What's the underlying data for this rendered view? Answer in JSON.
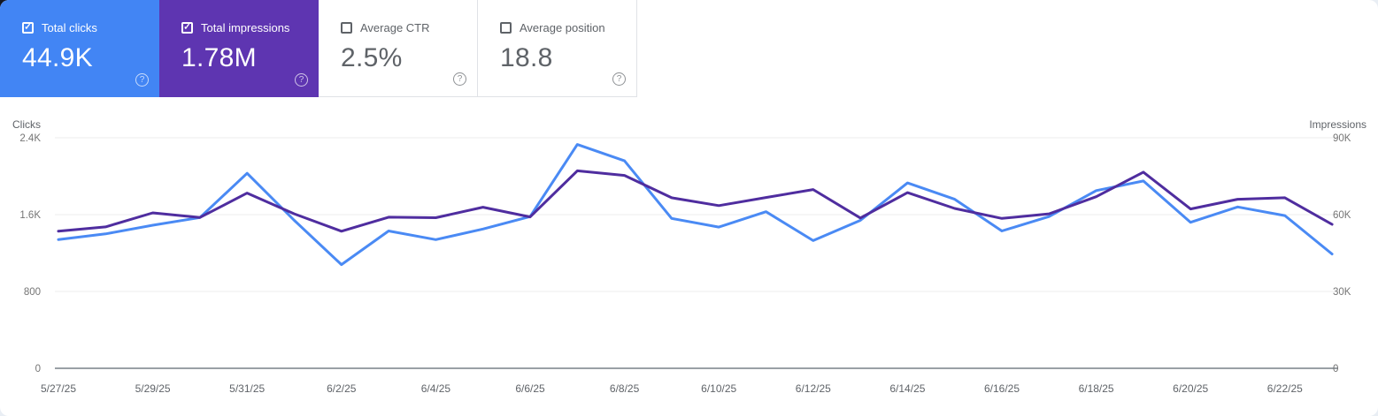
{
  "icons": {
    "check": "✓",
    "help": "?"
  },
  "cards": [
    {
      "label": "Total clicks",
      "value": "44.9K",
      "checked": true,
      "bg": "#4285f4",
      "text": "#ffffff"
    },
    {
      "label": "Total impressions",
      "value": "1.78M",
      "checked": true,
      "bg": "#5e35b1",
      "text": "#ffffff"
    },
    {
      "label": "Average CTR",
      "value": "2.5%",
      "checked": false,
      "bg": "#ffffff",
      "text": "#5f6368"
    },
    {
      "label": "Average position",
      "value": "18.8",
      "checked": false,
      "bg": "#ffffff",
      "text": "#5f6368"
    }
  ],
  "chart_data": {
    "type": "line",
    "x": [
      "5/27/25",
      "5/28/25",
      "5/29/25",
      "5/30/25",
      "5/31/25",
      "6/1/25",
      "6/2/25",
      "6/3/25",
      "6/4/25",
      "6/5/25",
      "6/6/25",
      "6/7/25",
      "6/8/25",
      "6/9/25",
      "6/10/25",
      "6/11/25",
      "6/12/25",
      "6/13/25",
      "6/14/25",
      "6/15/25",
      "6/16/25",
      "6/17/25",
      "6/18/25",
      "6/19/25",
      "6/20/25",
      "6/21/25",
      "6/22/25",
      "6/23/25"
    ],
    "x_tick_labels": [
      "5/27/25",
      "5/29/25",
      "5/31/25",
      "6/2/25",
      "6/4/25",
      "6/6/25",
      "6/8/25",
      "6/10/25",
      "6/12/25",
      "6/14/25",
      "6/16/25",
      "6/18/25",
      "6/20/25",
      "6/22/25"
    ],
    "series": [
      {
        "name": "Clicks",
        "axis": "left",
        "color": "#4a8af4",
        "values": [
          1340,
          1400,
          1490,
          1570,
          2030,
          1540,
          1080,
          1430,
          1340,
          1450,
          1580,
          2330,
          2160,
          1560,
          1470,
          1630,
          1330,
          1540,
          1930,
          1760,
          1430,
          1580,
          1850,
          1950,
          1520,
          1680,
          1590,
          1190
        ]
      },
      {
        "name": "Impressions",
        "axis": "right",
        "color": "#4f2d9f",
        "values": [
          53500,
          55200,
          60700,
          58900,
          68400,
          60300,
          53500,
          59000,
          58800,
          62900,
          59100,
          77100,
          75300,
          66600,
          63500,
          66700,
          69800,
          58700,
          68600,
          62400,
          58500,
          60300,
          67000,
          76600,
          62200,
          66000,
          66600,
          56200
        ]
      }
    ],
    "left_axis": {
      "label": "Clicks",
      "ticks": [
        "0",
        "800",
        "1.6K",
        "2.4K"
      ],
      "max": 2400
    },
    "right_axis": {
      "label": "Impressions",
      "ticks": [
        "0",
        "30K",
        "60K",
        "90K"
      ],
      "max": 90000
    },
    "grid": true,
    "legend_position": "none"
  }
}
